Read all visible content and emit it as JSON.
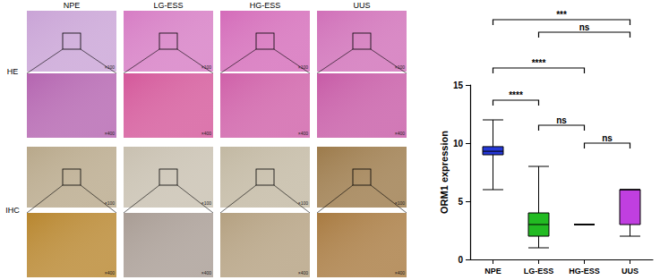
{
  "image_panel": {
    "columns": [
      "NPE",
      "LG-ESS",
      "HG-ESS",
      "UUS"
    ],
    "rows": [
      "HE",
      "IHC"
    ],
    "magnifications": [
      "×100",
      "×400"
    ]
  },
  "chart_data": {
    "type": "boxplot",
    "categories": [
      "NPE",
      "LG-ESS",
      "HG-ESS",
      "UUS"
    ],
    "values": [
      [
        6,
        9,
        9.3,
        9.7,
        12
      ],
      [
        1,
        2,
        3,
        4,
        8
      ],
      [
        3,
        3,
        3,
        3,
        3
      ],
      [
        2,
        3,
        6,
        6,
        6
      ]
    ],
    "colors": [
      "#2538d8",
      "#22bb22",
      "#111111",
      "#c03fe0"
    ],
    "ylabel": "ORM1 expression",
    "ylim": [
      0,
      15
    ],
    "yticks": [
      0,
      5,
      10,
      15
    ],
    "comparisons": [
      {
        "pair": [
          "NPE",
          "UUS"
        ],
        "label": "***"
      },
      {
        "pair": [
          "LG-ESS",
          "UUS"
        ],
        "label": "ns"
      },
      {
        "pair": [
          "NPE",
          "HG-ESS"
        ],
        "label": "****"
      },
      {
        "pair": [
          "NPE",
          "LG-ESS"
        ],
        "label": "****"
      },
      {
        "pair": [
          "LG-ESS",
          "HG-ESS"
        ],
        "label": "ns"
      },
      {
        "pair": [
          "HG-ESS",
          "UUS"
        ],
        "label": "ns"
      }
    ]
  }
}
